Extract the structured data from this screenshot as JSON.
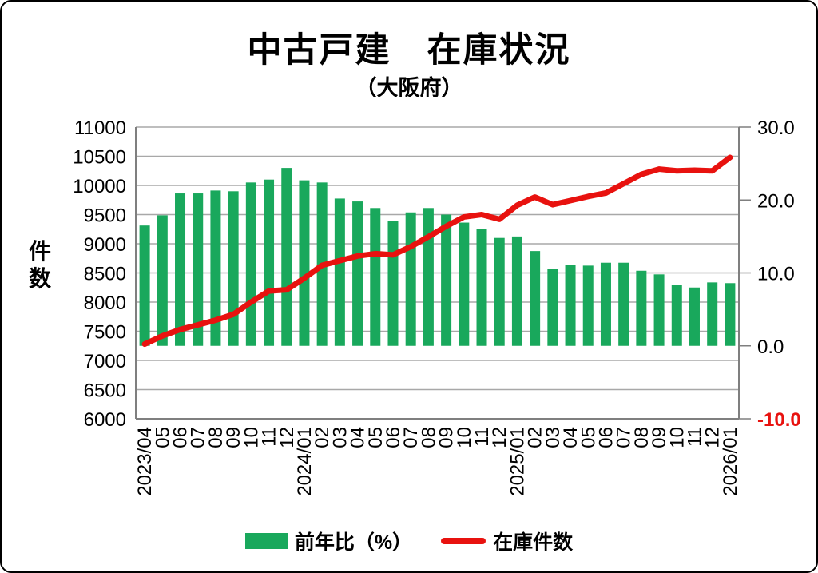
{
  "title": "中古戸建　在庫状況",
  "subtitle": "（大阪府）",
  "colors": {
    "bar": "#19A85C",
    "line": "#E8120F",
    "grid": "#A8A8A8",
    "axis": "#7F7F7F",
    "text": "#000000",
    "negative_tick_label": "#E8120F"
  },
  "legend": {
    "bar_label": "前年比（%）",
    "line_label": "在庫件数"
  },
  "chart_data": {
    "type": "bar+line combo",
    "title": "中古戸建　在庫状況",
    "subtitle": "（大阪府）",
    "grid": "horizontal only",
    "legend_position": "bottom center",
    "categories": [
      "2023/04",
      "05",
      "06",
      "07",
      "08",
      "09",
      "10",
      "11",
      "12",
      "2024/01",
      "02",
      "03",
      "04",
      "05",
      "06",
      "07",
      "08",
      "09",
      "10",
      "11",
      "12",
      "2025/01",
      "02",
      "03",
      "04",
      "05",
      "06",
      "07",
      "08",
      "09",
      "10",
      "11",
      "12",
      "2026/01"
    ],
    "left_axis": {
      "label": "件数",
      "min": 6000,
      "max": 11000,
      "step": 500
    },
    "right_axis": {
      "min": -10,
      "max": 30,
      "step": 10,
      "decimals": 1,
      "negative_labels_red": true
    },
    "series": [
      {
        "name": "前年比（%）",
        "type": "bar",
        "axis": "right",
        "values": [
          16.5,
          17.9,
          20.9,
          20.9,
          21.3,
          21.2,
          22.4,
          22.8,
          24.4,
          22.7,
          22.4,
          20.2,
          19.8,
          18.9,
          17.1,
          18.3,
          18.9,
          18.0,
          16.9,
          16.0,
          14.8,
          15.0,
          13.0,
          10.6,
          11.1,
          11.0,
          11.4,
          11.4,
          10.3,
          9.8,
          8.3,
          8.0,
          8.7,
          8.6
        ]
      },
      {
        "name": "在庫件数",
        "type": "line",
        "axis": "left",
        "values": [
          7280,
          7420,
          7530,
          7610,
          7690,
          7790,
          8000,
          8190,
          8210,
          8410,
          8630,
          8710,
          8790,
          8830,
          8810,
          8950,
          9120,
          9300,
          9460,
          9500,
          9420,
          9660,
          9800,
          9670,
          9740,
          9810,
          9870,
          10030,
          10190,
          10280,
          10250,
          10260,
          10250,
          10480
        ]
      }
    ]
  }
}
